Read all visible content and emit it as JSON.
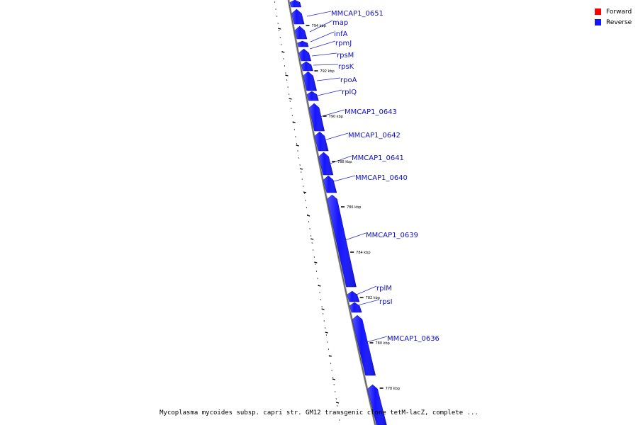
{
  "caption": "Mycoplasma mycoides subsp. capri str. GM12 transgenic clone tetM-lacZ, complete ...",
  "legend": [
    {
      "label": "Forward",
      "color": "#ff0000"
    },
    {
      "label": "Reverse",
      "color": "#1414ff"
    }
  ],
  "colors": {
    "reverse_gene": "#1414ff",
    "backbone": "#8a8a8a",
    "label": "#1010c8"
  },
  "genes": [
    {
      "name": "MMCAP1_0651"
    },
    {
      "name": "map"
    },
    {
      "name": "infA"
    },
    {
      "name": "rpmJ"
    },
    {
      "name": "rpsM"
    },
    {
      "name": "rpsK"
    },
    {
      "name": "rpoA"
    },
    {
      "name": "rplQ"
    },
    {
      "name": "MMCAP1_0643"
    },
    {
      "name": "MMCAP1_0642"
    },
    {
      "name": "MMCAP1_0641"
    },
    {
      "name": "MMCAP1_0640"
    },
    {
      "name": "MMCAP1_0639"
    },
    {
      "name": "rplM"
    },
    {
      "name": "rpsI"
    },
    {
      "name": "MMCAP1_0636"
    }
  ],
  "ticks": [
    "794 kbp",
    "792 kbp",
    "790 kbp",
    "788 kbp",
    "786 kbp",
    "784 kbp",
    "782 kbp",
    "780 kbp",
    "778 kbp"
  ]
}
